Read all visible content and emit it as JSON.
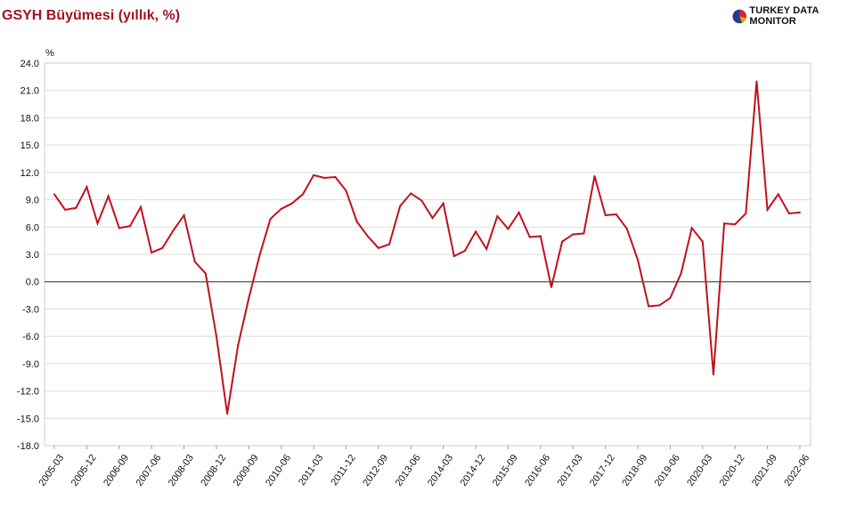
{
  "header": {
    "title": "GSYH Büyümesi (yıllık, %)",
    "logo_text": "TURKEY DATA MONITOR",
    "logo_icon": "pie-chart-icon"
  },
  "colors": {
    "line": "#c0111f",
    "title": "#a5121f",
    "grid": "#dddddd",
    "zero_line": "#555555"
  },
  "chart_data": {
    "type": "line",
    "title": "GSYH Büyümesi (yıllık, %)",
    "ylabel": "%",
    "xlabel": "",
    "ylim": [
      -18,
      24
    ],
    "yticks": [
      "24.0",
      "21.0",
      "18.0",
      "15.0",
      "12.0",
      "9.0",
      "6.0",
      "3.0",
      "0.0",
      "-3.0",
      "-6.0",
      "-9.0",
      "-12.0",
      "-15.0",
      "-18.0"
    ],
    "grid": true,
    "legend": "none",
    "x_tick_labels": [
      "2005-03",
      "2005-12",
      "2006-09",
      "2007-06",
      "2008-03",
      "2008-12",
      "2009-09",
      "2010-06",
      "2011-03",
      "2011-12",
      "2012-09",
      "2013-06",
      "2014-03",
      "2014-12",
      "2015-09",
      "2016-06",
      "2017-03",
      "2017-12",
      "2018-09",
      "2019-06",
      "2020-03",
      "2020-12",
      "2021-09",
      "2022-06"
    ],
    "series": [
      {
        "x": [
          "2005-03",
          "2005-06",
          "2005-09",
          "2005-12",
          "2006-03",
          "2006-06",
          "2006-09",
          "2006-12",
          "2007-03",
          "2007-06",
          "2007-09",
          "2007-12",
          "2008-03",
          "2008-06",
          "2008-09",
          "2008-12",
          "2009-03",
          "2009-06",
          "2009-09",
          "2009-12",
          "2010-03",
          "2010-06",
          "2010-09",
          "2010-12",
          "2011-03",
          "2011-06",
          "2011-09",
          "2011-12",
          "2012-03",
          "2012-06",
          "2012-09",
          "2012-12",
          "2013-03",
          "2013-06",
          "2013-09",
          "2013-12",
          "2014-03",
          "2014-06",
          "2014-09",
          "2014-12",
          "2015-03",
          "2015-06",
          "2015-09",
          "2015-12",
          "2016-03",
          "2016-06",
          "2016-09",
          "2016-12",
          "2017-03",
          "2017-06",
          "2017-09",
          "2017-12",
          "2018-03",
          "2018-06",
          "2018-09",
          "2018-12",
          "2019-03",
          "2019-06",
          "2019-09",
          "2019-12",
          "2020-03",
          "2020-06",
          "2020-09",
          "2020-12",
          "2021-03",
          "2021-06",
          "2021-09",
          "2021-12",
          "2022-03",
          "2022-06"
        ],
        "values": [
          9.6,
          7.9,
          8.1,
          10.4,
          6.4,
          9.4,
          5.9,
          6.1,
          8.2,
          3.2,
          3.7,
          5.6,
          7.3,
          2.2,
          0.9,
          -6.0,
          -14.5,
          -7.0,
          -1.8,
          2.9,
          6.9,
          8.0,
          8.6,
          9.6,
          11.7,
          11.4,
          11.5,
          10.0,
          6.6,
          5.0,
          3.7,
          4.1,
          8.3,
          9.7,
          8.9,
          7.0,
          8.6,
          2.8,
          3.4,
          5.5,
          3.6,
          7.2,
          5.8,
          7.6,
          4.9,
          5.0,
          -0.6,
          4.4,
          5.2,
          5.3,
          11.6,
          7.3,
          7.4,
          5.8,
          2.4,
          -2.7,
          -2.6,
          -1.8,
          0.9,
          5.9,
          4.4,
          -10.2,
          6.4,
          6.3,
          7.5,
          22.0,
          7.9,
          9.6,
          7.5,
          7.6
        ]
      }
    ]
  }
}
